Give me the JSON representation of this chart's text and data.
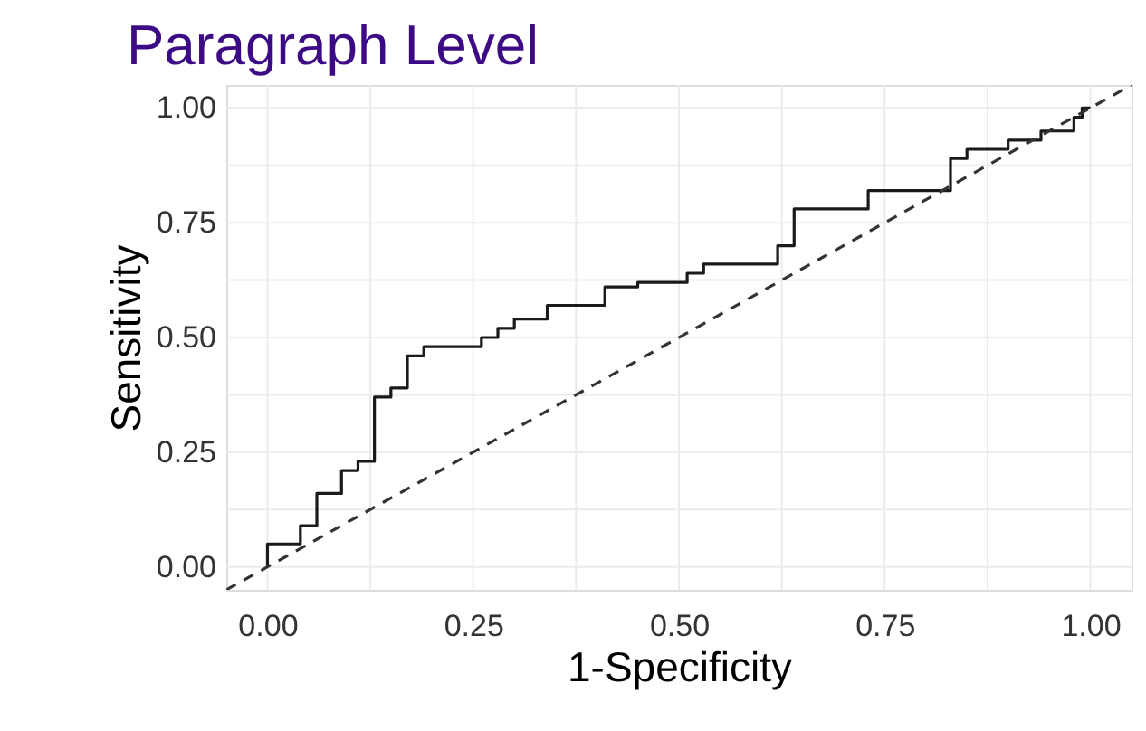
{
  "chart_data": {
    "type": "step",
    "title": "Paragraph Level",
    "xlabel": "1-Specificity",
    "ylabel": "Sensitivity",
    "xlim": [
      -0.05,
      1.05
    ],
    "ylim": [
      -0.05,
      1.05
    ],
    "xticks": [
      {
        "value": 0,
        "label": "0.00"
      },
      {
        "value": 0.125,
        "label": null
      },
      {
        "value": 0.25,
        "label": "0.25"
      },
      {
        "value": 0.375,
        "label": null
      },
      {
        "value": 0.5,
        "label": "0.50"
      },
      {
        "value": 0.625,
        "label": null
      },
      {
        "value": 0.75,
        "label": "0.75"
      },
      {
        "value": 0.875,
        "label": null
      },
      {
        "value": 1,
        "label": "1.00"
      }
    ],
    "yticks": [
      {
        "value": 0,
        "label": "0.00"
      },
      {
        "value": 0.125,
        "label": null
      },
      {
        "value": 0.25,
        "label": "0.25"
      },
      {
        "value": 0.375,
        "label": null
      },
      {
        "value": 0.5,
        "label": "0.50"
      },
      {
        "value": 0.625,
        "label": null
      },
      {
        "value": 0.75,
        "label": "0.75"
      },
      {
        "value": 0.875,
        "label": null
      },
      {
        "value": 1,
        "label": "1.00"
      }
    ],
    "grid": true,
    "series": [
      {
        "color": "#1a1a1a",
        "line_style": "solid",
        "x": [
          0,
          0,
          0.04,
          0.06,
          0.09,
          0.11,
          0.13,
          0.15,
          0.17,
          0.19,
          0.26,
          0.28,
          0.3,
          0.34,
          0.41,
          0.45,
          0.51,
          0.53,
          0.62,
          0.64,
          0.73,
          0.83,
          0.85,
          0.9,
          0.94,
          0.98,
          0.99,
          1.0
        ],
        "values": [
          0,
          0.05,
          0.09,
          0.16,
          0.21,
          0.23,
          0.37,
          0.39,
          0.46,
          0.48,
          0.5,
          0.52,
          0.54,
          0.57,
          0.61,
          0.62,
          0.64,
          0.66,
          0.7,
          0.78,
          0.82,
          0.89,
          0.91,
          0.93,
          0.95,
          0.98,
          1.0,
          1.0
        ]
      },
      {
        "type": "line",
        "color": "#333333",
        "line_style": "dashed",
        "x": [
          -0.05,
          1.05
        ],
        "values": [
          -0.05,
          1.05
        ]
      }
    ]
  }
}
